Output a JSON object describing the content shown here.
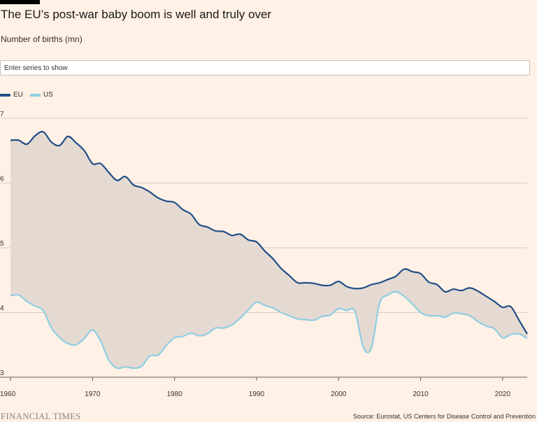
{
  "header": {
    "title": "The EU’s post-war baby boom is well and truly over",
    "subtitle": "Number of births (mn)"
  },
  "search": {
    "placeholder": "Enter series to show"
  },
  "legend": {
    "items": [
      {
        "label": "EU",
        "color": "#1F4E87"
      },
      {
        "label": "US",
        "color": "#8FCDE3"
      }
    ]
  },
  "colors": {
    "fill": "#E5DAD2",
    "grid": "#D9CCC2",
    "axis": "#66605C"
  },
  "chart_data": {
    "type": "line",
    "title": "The EU’s post-war baby boom is well and truly over",
    "ylabel": "Number of births (mn)",
    "xlabel": "",
    "xlim": [
      1960,
      2023
    ],
    "ylim": [
      3,
      7
    ],
    "x_ticks": [
      "1960",
      "1970",
      "1980",
      "1990",
      "2000",
      "2010",
      "2020"
    ],
    "y_ticks": [
      "3",
      "4",
      "5",
      "6",
      "7"
    ],
    "grid": true,
    "legend_position": "top-left",
    "shaded_between_series": true,
    "series": [
      {
        "name": "EU",
        "color": "#1F4E87",
        "x": [
          1960,
          1961,
          1962,
          1963,
          1964,
          1965,
          1966,
          1967,
          1968,
          1969,
          1970,
          1971,
          1972,
          1973,
          1974,
          1975,
          1976,
          1977,
          1978,
          1979,
          1980,
          1981,
          1982,
          1983,
          1984,
          1985,
          1986,
          1987,
          1988,
          1989,
          1990,
          1991,
          1992,
          1993,
          1994,
          1995,
          1996,
          1997,
          1998,
          1999,
          2000,
          2001,
          2002,
          2003,
          2004,
          2005,
          2006,
          2007,
          2008,
          2009,
          2010,
          2011,
          2012,
          2013,
          2014,
          2015,
          2016,
          2017,
          2018,
          2019,
          2020,
          2021,
          2022,
          2023
        ],
        "values": [
          6.66,
          6.66,
          6.6,
          6.73,
          6.79,
          6.63,
          6.58,
          6.72,
          6.62,
          6.5,
          6.3,
          6.3,
          6.16,
          6.04,
          6.1,
          5.97,
          5.93,
          5.86,
          5.77,
          5.72,
          5.7,
          5.59,
          5.52,
          5.36,
          5.32,
          5.26,
          5.25,
          5.19,
          5.21,
          5.12,
          5.09,
          4.95,
          4.83,
          4.68,
          4.57,
          4.46,
          4.46,
          4.45,
          4.42,
          4.42,
          4.48,
          4.4,
          4.37,
          4.38,
          4.43,
          4.46,
          4.51,
          4.56,
          4.67,
          4.63,
          4.6,
          4.47,
          4.43,
          4.32,
          4.36,
          4.34,
          4.38,
          4.33,
          4.25,
          4.17,
          4.08,
          4.09,
          3.88,
          3.67
        ]
      },
      {
        "name": "US",
        "color": "#8FCDE3",
        "x": [
          1960,
          1961,
          1962,
          1963,
          1964,
          1965,
          1966,
          1967,
          1968,
          1969,
          1970,
          1971,
          1972,
          1973,
          1974,
          1975,
          1976,
          1977,
          1978,
          1979,
          1980,
          1981,
          1982,
          1983,
          1984,
          1985,
          1986,
          1987,
          1988,
          1989,
          1990,
          1991,
          1992,
          1993,
          1994,
          1995,
          1996,
          1997,
          1998,
          1999,
          2000,
          2001,
          2002,
          2003,
          2004,
          2005,
          2006,
          2007,
          2008,
          2009,
          2010,
          2011,
          2012,
          2013,
          2014,
          2015,
          2016,
          2017,
          2018,
          2019,
          2020,
          2021,
          2022,
          2023
        ],
        "values": [
          4.26,
          4.27,
          4.17,
          4.1,
          4.03,
          3.76,
          3.61,
          3.52,
          3.5,
          3.6,
          3.73,
          3.56,
          3.26,
          3.14,
          3.16,
          3.14,
          3.17,
          3.33,
          3.34,
          3.49,
          3.61,
          3.63,
          3.68,
          3.64,
          3.67,
          3.76,
          3.76,
          3.81,
          3.91,
          4.04,
          4.16,
          4.11,
          4.07,
          4.0,
          3.95,
          3.9,
          3.89,
          3.88,
          3.94,
          3.96,
          4.06,
          4.03,
          4.02,
          3.47,
          3.45,
          4.14,
          4.27,
          4.32,
          4.25,
          4.13,
          4.0,
          3.95,
          3.95,
          3.93,
          3.99,
          3.98,
          3.95,
          3.86,
          3.79,
          3.75,
          3.61,
          3.66,
          3.67,
          3.6
        ]
      }
    ]
  },
  "footer": {
    "logo": "FINANCIAL TIMES",
    "source": "Source: Eurostat, US Centers for Disease Control and Prevention"
  }
}
